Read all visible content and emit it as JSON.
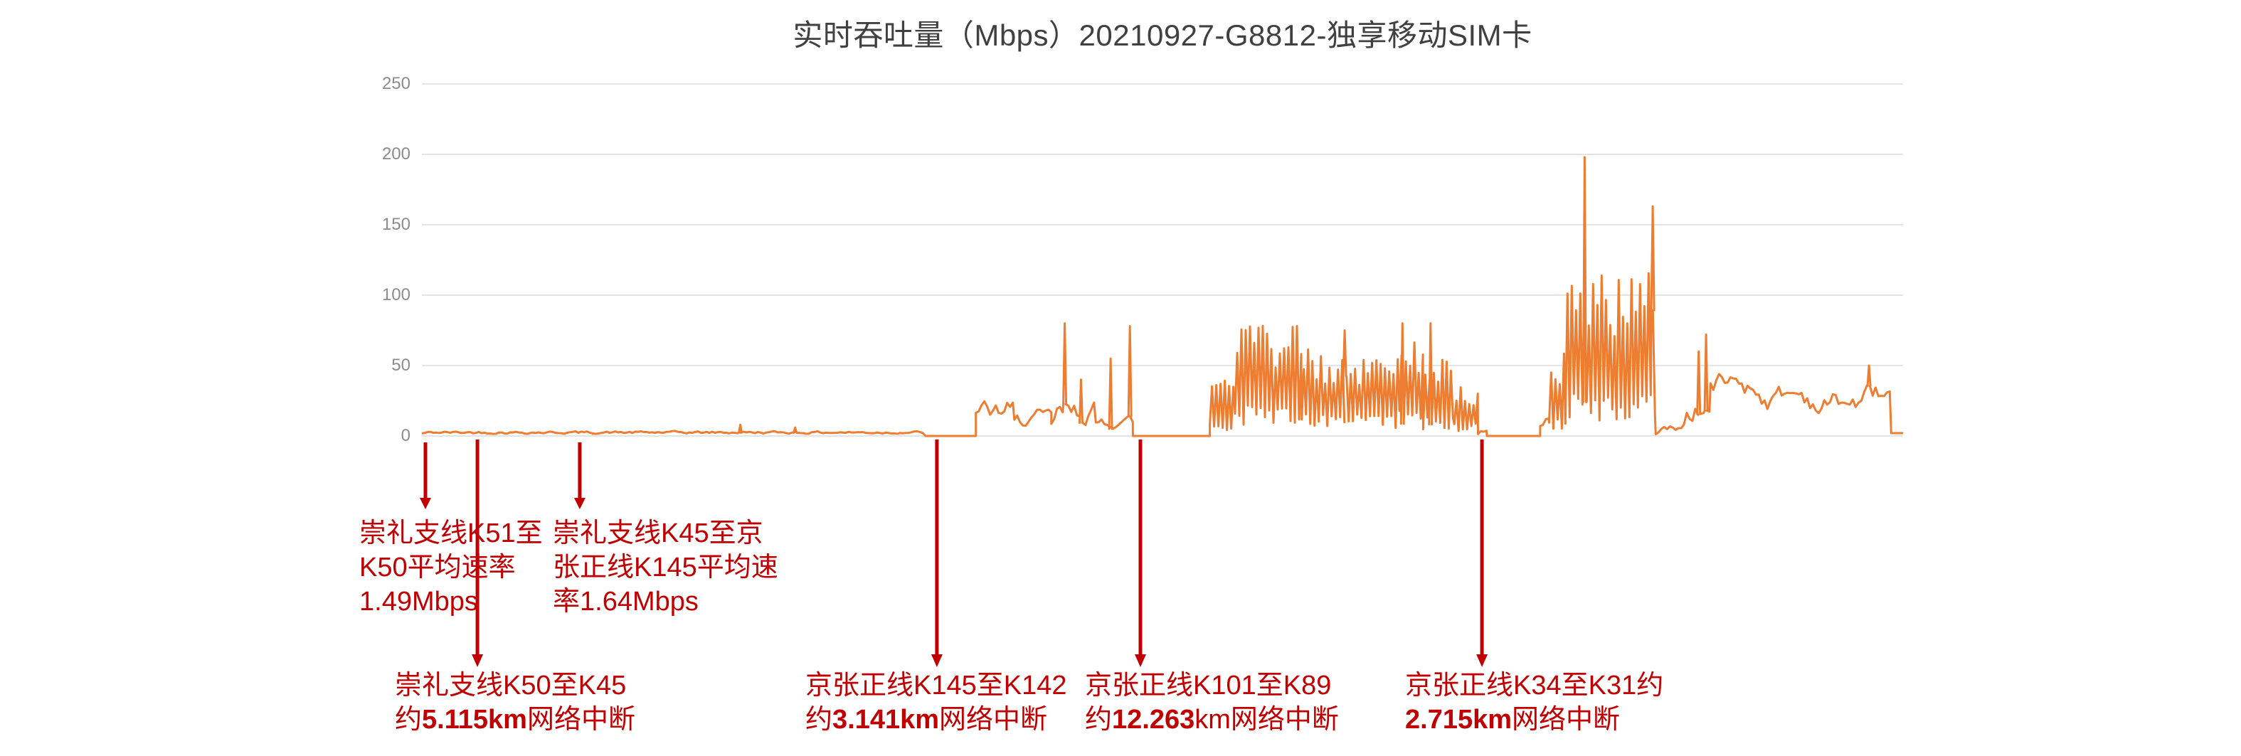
{
  "title": "实时吞吐量（Mbps）20210927-G8812-独享移动SIM卡",
  "colors": {
    "line": "#ED7D31",
    "annotation": "#C00000",
    "tick_label": "#8C8C8C",
    "gridline": "#E4E4E4",
    "title": "#404040"
  },
  "chart_data": {
    "type": "line",
    "title": "实时吞吐量（Mbps）20210927-G8812-独享移动SIM卡",
    "series_name": "实时吞吐量(Mbps)",
    "xlabel": "",
    "ylabel": "",
    "ylim": [
      0,
      250
    ],
    "yticks": [
      0,
      50,
      100,
      150,
      200,
      250
    ],
    "grid": "horizontal-only",
    "legend": "none",
    "x_axis_labels_visible": false,
    "segments": [
      {
        "kind": "noise",
        "from": 0.0,
        "to": 0.34,
        "min": 1,
        "max": 4,
        "spikes": [
          [
            0.215,
            8
          ],
          [
            0.252,
            6
          ]
        ],
        "note": "低速段 平均约1.5Mbps"
      },
      {
        "kind": "flat",
        "from": 0.34,
        "to": 0.374,
        "value": 0,
        "note": "网络中断"
      },
      {
        "kind": "noise",
        "from": 0.374,
        "to": 0.4,
        "min": 6,
        "max": 30
      },
      {
        "kind": "noise",
        "from": 0.4,
        "to": 0.425,
        "min": 4,
        "max": 22
      },
      {
        "kind": "noise",
        "from": 0.425,
        "to": 0.455,
        "min": 4,
        "max": 30,
        "spikes": [
          [
            0.434,
            80
          ],
          [
            0.445,
            40
          ]
        ]
      },
      {
        "kind": "noise",
        "from": 0.455,
        "to": 0.48,
        "min": 3,
        "max": 18,
        "spikes": [
          [
            0.465,
            55
          ],
          [
            0.478,
            78
          ]
        ]
      },
      {
        "kind": "flat",
        "from": 0.48,
        "to": 0.532,
        "value": 0,
        "note": "网络中断"
      },
      {
        "kind": "burst",
        "from": 0.532,
        "to": 0.549,
        "min": 3,
        "max": 45
      },
      {
        "kind": "burst",
        "from": 0.549,
        "to": 0.594,
        "min": 8,
        "max": 80
      },
      {
        "kind": "burst",
        "from": 0.594,
        "to": 0.66,
        "min": 4,
        "max": 62,
        "spikes": [
          [
            0.623,
            75
          ]
        ]
      },
      {
        "kind": "burst",
        "from": 0.66,
        "to": 0.676,
        "min": 5,
        "max": 72,
        "spikes": [
          [
            0.662,
            80
          ]
        ]
      },
      {
        "kind": "burst",
        "from": 0.676,
        "to": 0.697,
        "min": 4,
        "max": 55,
        "spikes": [
          [
            0.681,
            80
          ]
        ]
      },
      {
        "kind": "burst",
        "from": 0.697,
        "to": 0.713,
        "min": 3,
        "max": 35
      },
      {
        "kind": "noise",
        "from": 0.713,
        "to": 0.719,
        "min": 1,
        "max": 8
      },
      {
        "kind": "flat",
        "from": 0.719,
        "to": 0.755,
        "value": 0,
        "note": "网络中断"
      },
      {
        "kind": "noise",
        "from": 0.755,
        "to": 0.761,
        "min": 5,
        "max": 20
      },
      {
        "kind": "burst",
        "from": 0.761,
        "to": 0.772,
        "min": 4,
        "max": 60
      },
      {
        "kind": "burst",
        "from": 0.772,
        "to": 0.833,
        "min": 8,
        "max": 118,
        "spikes": [
          [
            0.785,
            198
          ],
          [
            0.831,
            163
          ]
        ]
      },
      {
        "kind": "noise",
        "from": 0.833,
        "to": 0.852,
        "min": 1,
        "max": 10
      },
      {
        "kind": "noise",
        "from": 0.852,
        "to": 0.87,
        "min": 6,
        "max": 28,
        "spikes": [
          [
            0.862,
            60
          ],
          [
            0.867,
            72
          ]
        ]
      },
      {
        "kind": "band",
        "from": 0.87,
        "to": 0.992,
        "min": 14,
        "max": 46,
        "start": 35,
        "spikes": [
          [
            0.977,
            50
          ]
        ]
      },
      {
        "kind": "flat",
        "from": 0.992,
        "to": 1.0,
        "value": 2
      }
    ],
    "max_observed_value": 198,
    "annotations": [
      {
        "id": "avg-rate-k51-k50",
        "arrow_x_frac": 0.0024,
        "arrow": "short",
        "row": "top",
        "text_left": 505,
        "lines": [
          [
            {
              "t": "崇礼支线K51至"
            }
          ],
          [
            {
              "t": "K50平均速率"
            }
          ],
          [
            {
              "t": "1.49Mbps"
            }
          ]
        ]
      },
      {
        "id": "avg-rate-k45-k145",
        "arrow_x_frac": 0.1066,
        "arrow": "short",
        "row": "top",
        "text_left": 777,
        "lines": [
          [
            {
              "t": "崇礼支线K45至京"
            }
          ],
          [
            {
              "t": "张正线K145平均速"
            }
          ],
          [
            {
              "t": "率1.64Mbps"
            }
          ]
        ]
      },
      {
        "id": "break-k50-k45",
        "arrow_x_frac": 0.0375,
        "arrow": "long",
        "row": "bottom",
        "text_left": 555,
        "lines": [
          [
            {
              "t": "崇礼支线K50至K45"
            }
          ],
          [
            {
              "t": "约"
            },
            {
              "t": "5.115km",
              "b": true
            },
            {
              "t": "网络中断"
            }
          ]
        ]
      },
      {
        "id": "break-k145-k142",
        "arrow_x_frac": 0.3477,
        "arrow": "long",
        "row": "bottom",
        "text_left": 1132,
        "lines": [
          [
            {
              "t": "京张正线K145至K142"
            }
          ],
          [
            {
              "t": "约"
            },
            {
              "t": "3.141km",
              "b": true
            },
            {
              "t": "网络中断"
            }
          ]
        ]
      },
      {
        "id": "break-k101-k89",
        "arrow_x_frac": 0.4851,
        "arrow": "long",
        "row": "bottom",
        "text_left": 1525,
        "lines": [
          [
            {
              "t": "京张正线K101至K89"
            }
          ],
          [
            {
              "t": "约"
            },
            {
              "t": "12.263",
              "b": true
            },
            {
              "t": "km网络中断"
            }
          ]
        ]
      },
      {
        "id": "break-k34-k31",
        "arrow_x_frac": 0.7157,
        "arrow": "long",
        "row": "bottom",
        "text_left": 1975,
        "lines": [
          [
            {
              "t": "京张正线K34至K31约"
            }
          ],
          [
            {
              "t": "2.715km",
              "b": true
            },
            {
              "t": "网络中断"
            }
          ]
        ]
      }
    ]
  }
}
